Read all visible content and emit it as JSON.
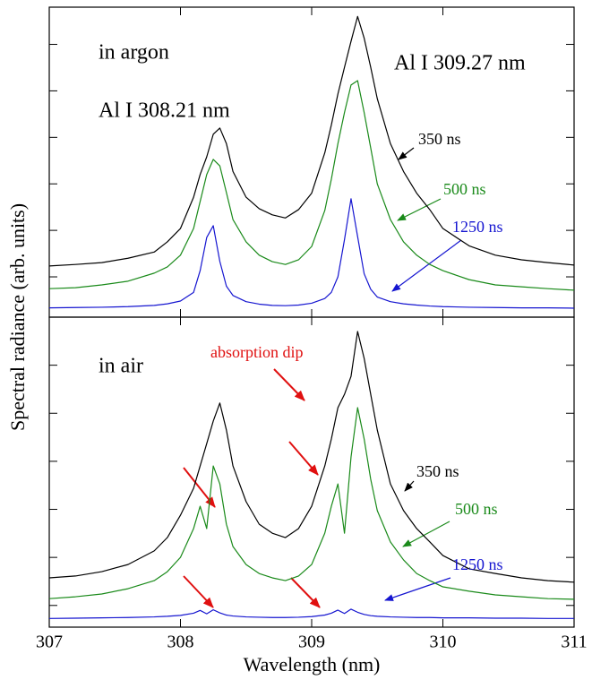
{
  "chart_data": [
    {
      "type": "line",
      "ylabel": "Spectral radiance (arb. units)",
      "annotations": [
        "in argon",
        "Al I 309.27 nm",
        "Al I 308.21 nm"
      ],
      "x": [
        307.0,
        307.2,
        307.4,
        307.6,
        307.8,
        307.9,
        308.0,
        308.1,
        308.15,
        308.2,
        308.25,
        308.3,
        308.35,
        308.4,
        308.5,
        308.6,
        308.7,
        308.8,
        308.9,
        309.0,
        309.1,
        309.15,
        309.2,
        309.25,
        309.3,
        309.35,
        309.4,
        309.45,
        309.5,
        309.6,
        309.7,
        309.8,
        309.9,
        310.0,
        310.2,
        310.4,
        310.6,
        310.8,
        311.0
      ],
      "series": [
        {
          "name": "350 ns",
          "color": "#000000",
          "values": [
            16.5,
            17,
            17.6,
            19,
            21,
            24.3,
            28.6,
            38.7,
            46,
            51.7,
            59,
            61,
            56,
            47,
            38.7,
            35,
            33,
            32,
            34.7,
            40,
            53,
            62,
            72,
            80.6,
            89,
            97,
            90,
            80.6,
            70.5,
            56,
            47,
            40,
            34.7,
            28.6,
            23,
            20,
            18.5,
            17.6,
            16.8
          ]
        },
        {
          "name": "500 ns",
          "color": "#1a8a1a",
          "values": [
            9.2,
            9.5,
            10.4,
            11.6,
            14.2,
            16.2,
            20,
            28.6,
            37.3,
            46,
            50.9,
            48.8,
            40.2,
            31.5,
            24.3,
            20,
            17.9,
            17,
            18.5,
            22.8,
            34.4,
            44.5,
            56,
            66,
            74.9,
            76.3,
            66,
            54.6,
            43,
            31.5,
            24.3,
            20,
            17,
            15,
            12.1,
            10.4,
            9.8,
            9.2,
            8.7
          ]
        },
        {
          "name": "1250 ns",
          "color": "#1515d0",
          "values": [
            3.0,
            3.1,
            3.2,
            3.4,
            3.8,
            4.3,
            5.2,
            8,
            15,
            25.7,
            29.5,
            18,
            10,
            7,
            5,
            4.2,
            3.8,
            3.7,
            3.9,
            4.5,
            6,
            8,
            13,
            25,
            38.2,
            26,
            14,
            9,
            6.5,
            5,
            4.3,
            3.9,
            3.6,
            3.4,
            3.2,
            3.1,
            3.0,
            3.0,
            2.9
          ]
        }
      ],
      "xlim": [
        307,
        311
      ],
      "xticks": [
        307,
        308,
        309,
        310,
        311
      ],
      "ylim": [
        0,
        100
      ],
      "yticks": [
        13,
        28,
        43,
        58,
        73,
        88
      ]
    },
    {
      "type": "line",
      "xlabel": "Wavelength (nm)",
      "annotations": [
        "in air",
        "absorption dip"
      ],
      "x": [
        307.0,
        307.2,
        307.4,
        307.6,
        307.8,
        307.9,
        308.0,
        308.1,
        308.15,
        308.2,
        308.25,
        308.3,
        308.35,
        308.4,
        308.5,
        308.6,
        308.7,
        308.8,
        308.9,
        309.0,
        309.1,
        309.15,
        309.2,
        309.25,
        309.3,
        309.35,
        309.4,
        309.45,
        309.5,
        309.6,
        309.7,
        309.8,
        309.9,
        310.0,
        310.2,
        310.4,
        310.6,
        310.8,
        311.0
      ],
      "series": [
        {
          "name": "350 ns",
          "color": "#000000",
          "values": [
            15.9,
            16.5,
            17.9,
            20.2,
            24.6,
            28.9,
            36.1,
            44.8,
            52,
            59.2,
            66.5,
            72.3,
            63.6,
            52,
            40.5,
            33.2,
            30.3,
            28.9,
            31.8,
            39,
            52,
            60.7,
            70.8,
            75.1,
            80.9,
            95.4,
            86.7,
            75.1,
            63.6,
            46.2,
            37.6,
            31.8,
            27.5,
            23.1,
            18.8,
            17.3,
            15.9,
            15,
            14.5
          ]
        },
        {
          "name": "500 ns",
          "color": "#1a8a1a",
          "values": [
            9.2,
            9.8,
            10.7,
            12.4,
            15,
            17.9,
            22.5,
            31.8,
            39,
            31.8,
            52,
            46.2,
            33.2,
            26,
            20.2,
            17.3,
            15.9,
            15,
            16.5,
            20.2,
            30.3,
            39,
            46.2,
            30.3,
            54.9,
            70.8,
            60.7,
            47.7,
            37.6,
            27.5,
            21.7,
            17.3,
            15,
            13,
            11.6,
            10.4,
            9.8,
            9.2,
            9
          ]
        },
        {
          "name": "1250 ns",
          "color": "#1515d0",
          "values": [
            2.8,
            2.9,
            3.0,
            3.1,
            3.3,
            3.5,
            3.8,
            4.5,
            5.4,
            4.3,
            5.6,
            4.6,
            3.9,
            3.6,
            3.3,
            3.2,
            3.1,
            3.1,
            3.2,
            3.4,
            3.9,
            4.5,
            5.5,
            4.4,
            5.8,
            4.8,
            4.1,
            3.7,
            3.5,
            3.3,
            3.2,
            3.1,
            3.1,
            3.0,
            3.0,
            2.9,
            2.9,
            2.8,
            2.8
          ]
        }
      ],
      "xlim": [
        307,
        311
      ],
      "xticks": [
        307,
        308,
        309,
        310,
        311
      ],
      "ylim": [
        0,
        100
      ],
      "yticks": [
        7,
        22.5,
        38,
        53.5,
        69,
        84.5
      ]
    }
  ]
}
